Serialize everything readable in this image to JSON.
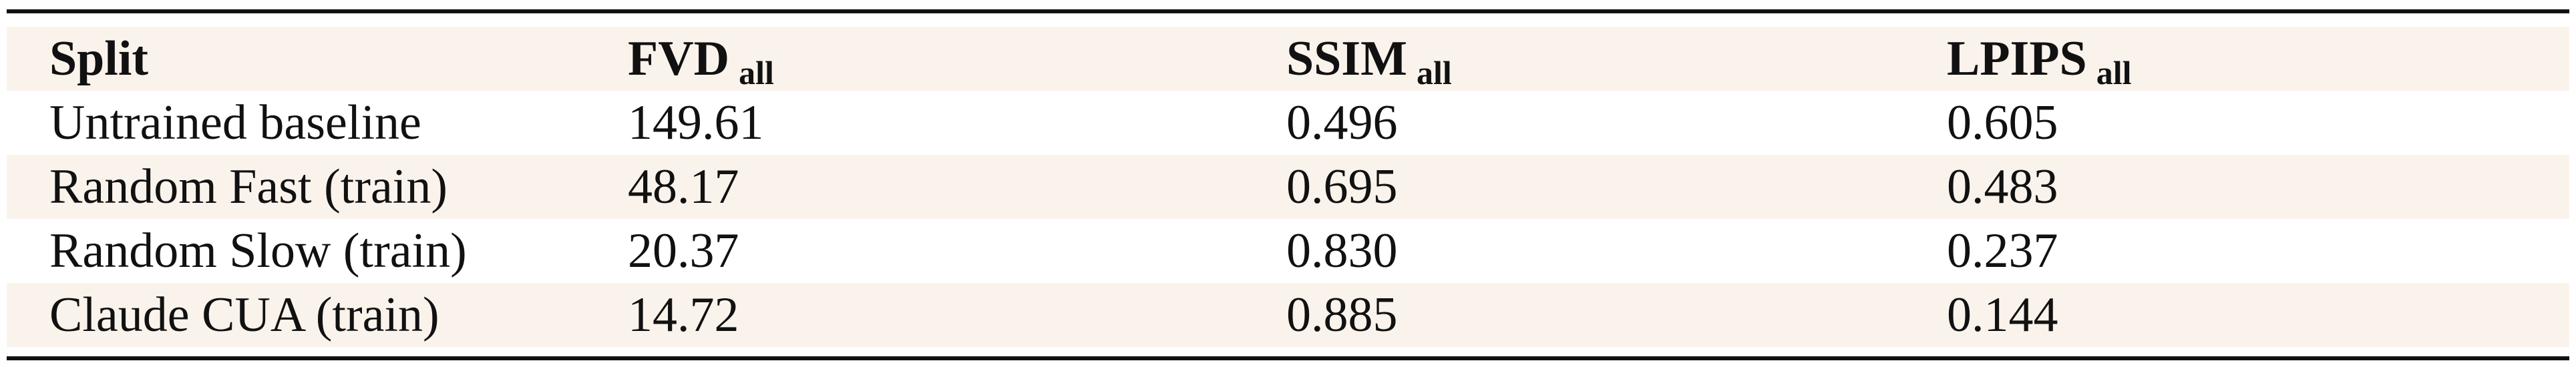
{
  "table": {
    "header": [
      {
        "text": "Split"
      },
      {
        "text": "FVD",
        "sub": "all"
      },
      {
        "text": "SSIM",
        "sub": "all"
      },
      {
        "text": "LPIPS",
        "sub": "all"
      }
    ],
    "rows": [
      [
        "Untrained baseline",
        "149.61",
        "0.496",
        "0.605"
      ],
      [
        "Random Fast (train)",
        "48.17",
        "0.695",
        "0.483"
      ],
      [
        "Random Slow (train)",
        "20.37",
        "0.830",
        "0.237"
      ],
      [
        "Claude CUA (train)",
        "14.72",
        "0.885",
        "0.144"
      ]
    ]
  }
}
